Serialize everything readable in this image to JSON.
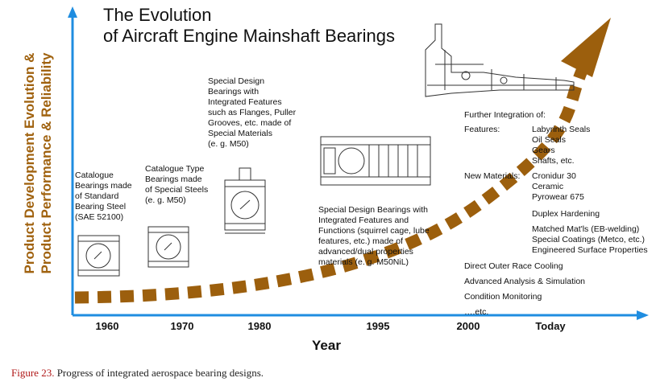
{
  "title": [
    "The Evolution",
    "of Aircraft Engine Mainshaft Bearings"
  ],
  "y_axis_label": [
    "Product Development Evolution &",
    "Product Performance & Reliability"
  ],
  "x_axis_label": "Year",
  "x_ticks": [
    "1960",
    "1970",
    "1980",
    "1995",
    "2000",
    "Today"
  ],
  "eras": {
    "e1960": [
      "Catalogue",
      "Bearings made",
      "of Standard",
      "Bearing Steel",
      "(SAE 52100)"
    ],
    "e1970": [
      "Catalogue Type",
      "Bearings made",
      "of Special Steels",
      "(e. g. M50)"
    ],
    "e1980": [
      "Special Design",
      "Bearings with",
      "Integrated Features",
      "such as Flanges, Puller",
      "Grooves, etc. made of",
      "Special Materials",
      "(e. g. M50)"
    ],
    "e1995": [
      "Special Design Bearings with",
      "Integrated Features and",
      "Functions (squirrel cage, lube",
      "features, etc.) made of",
      "advanced/dual properties",
      "materials (e. g. M50NiL)"
    ]
  },
  "today": {
    "heading": "Further Integration of:",
    "features_label": "Features:",
    "features": [
      "Labyrinth Seals",
      "Oil Seals",
      "Gears",
      "Shafts, etc."
    ],
    "materials_label": "New  Materials:",
    "materials": [
      "Cronidur 30",
      "Ceramic",
      "Pyrowear 675"
    ],
    "treatments": [
      "Duplex Hardening",
      "Matched Mat'ls (EB-welding)",
      "Special Coatings (Metco, etc.)",
      "Engineered Surface Properties"
    ],
    "other": [
      "Direct Outer Race Cooling",
      "Advanced  Analysis & Simulation",
      "Condition Monitoring",
      "….etc."
    ]
  },
  "caption": {
    "label": "Figure 23.",
    "text": " Progress of integrated aerospace bearing designs."
  },
  "colors": {
    "axis": "#1f8de0",
    "trend": "#9c5f0d",
    "ylabel": "#a0620f",
    "caption_label": "#b01818"
  }
}
